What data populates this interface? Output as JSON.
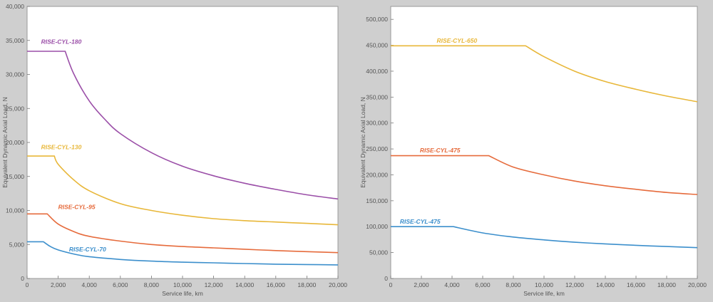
{
  "chart_data": [
    {
      "type": "line",
      "xlabel": "Service life, km",
      "ylabel": "Equivalent Dynamic Axial Load, N",
      "xlim": [
        0,
        20000
      ],
      "ylim": [
        0,
        40000
      ],
      "xticks": [
        0,
        2000,
        4000,
        6000,
        8000,
        10000,
        12000,
        14000,
        16000,
        18000,
        20000
      ],
      "xtick_labels": [
        "0",
        "2,000",
        "4,000",
        "6,000",
        "8,000",
        "10,000",
        "12,000",
        "14,000",
        "16,000",
        "18,000",
        "20,000"
      ],
      "yticks": [
        0,
        5000,
        10000,
        15000,
        20000,
        25000,
        30000,
        35000,
        40000
      ],
      "ytick_labels": [
        "0",
        "5,000",
        "10,000",
        "15,000",
        "20,000",
        "25,000",
        "30,000",
        "35,000",
        "40,000"
      ],
      "grid": false,
      "series": [
        {
          "name": "RISE-CYL-180",
          "color": "#9b4fa8",
          "plateau": 33400,
          "knee": 2450,
          "label_at": [
            900,
            34500
          ],
          "x": [
            0,
            2450,
            3000,
            4000,
            5000,
            6000,
            8000,
            10000,
            12000,
            14000,
            16000,
            18000,
            20000
          ],
          "y": [
            33400,
            33400,
            30100,
            26100,
            23400,
            21300,
            18500,
            16500,
            15100,
            14000,
            13100,
            12300,
            11700
          ]
        },
        {
          "name": "RISE-CYL-130",
          "color": "#e8b739",
          "plateau": 18000,
          "knee": 1750,
          "label_at": [
            900,
            19000
          ],
          "x": [
            0,
            1750,
            2000,
            3000,
            4000,
            6000,
            8000,
            10000,
            12000,
            14000,
            16000,
            18000,
            20000
          ],
          "y": [
            18000,
            18000,
            16800,
            14500,
            12900,
            11000,
            10000,
            9300,
            8800,
            8500,
            8300,
            8100,
            7900
          ]
        },
        {
          "name": "RISE-CYL-95",
          "color": "#e66b3c",
          "plateau": 9500,
          "knee": 1300,
          "label_at": [
            2000,
            10200
          ],
          "x": [
            0,
            1300,
            2000,
            3000,
            4000,
            6000,
            8000,
            10000,
            12000,
            14000,
            16000,
            18000,
            20000
          ],
          "y": [
            9500,
            9500,
            8000,
            6900,
            6200,
            5500,
            5000,
            4700,
            4500,
            4300,
            4100,
            3950,
            3800
          ]
        },
        {
          "name": "RISE-CYL-70",
          "color": "#3c8fcc",
          "plateau": 5400,
          "knee": 1050,
          "label_at": [
            2700,
            4000
          ],
          "x": [
            0,
            1050,
            1500,
            2000,
            3000,
            4000,
            6000,
            8000,
            10000,
            12000,
            14000,
            16000,
            18000,
            20000
          ],
          "y": [
            5400,
            5400,
            4700,
            4200,
            3600,
            3200,
            2800,
            2550,
            2400,
            2300,
            2200,
            2100,
            2050,
            2000
          ]
        }
      ]
    },
    {
      "type": "line",
      "xlabel": "Service life, km",
      "ylabel": "Equivalent Dynamic Axial Load, N",
      "xlim": [
        0,
        20000
      ],
      "ylim": [
        0,
        525000
      ],
      "xticks": [
        0,
        2000,
        4000,
        6000,
        8000,
        10000,
        12000,
        14000,
        16000,
        18000,
        20000
      ],
      "xtick_labels": [
        "0",
        "2,000",
        "4,000",
        "6,000",
        "8,000",
        "10,000",
        "12,000",
        "14,000",
        "16,000",
        "18,000",
        "20,000"
      ],
      "yticks": [
        0,
        50000,
        100000,
        150000,
        200000,
        250000,
        300000,
        350000,
        400000,
        450000,
        500000
      ],
      "ytick_labels": [
        "0",
        "50,000",
        "100,000",
        "150,000",
        "200,000",
        "250,000",
        "300,000",
        "350,000",
        "400,000",
        "450,000",
        "500,000"
      ],
      "grid": false,
      "series": [
        {
          "name": "RISE-CYL-650",
          "color": "#e8b739",
          "plateau": 449000,
          "knee": 8800,
          "label_at": [
            3000,
            455000
          ],
          "x": [
            0,
            8800,
            10000,
            12000,
            14000,
            16000,
            18000,
            20000
          ],
          "y": [
            449000,
            449000,
            428000,
            400000,
            380000,
            365000,
            352000,
            341000
          ]
        },
        {
          "name": "RISE-CYL-475",
          "color": "#e66b3c",
          "plateau": 237000,
          "knee": 6400,
          "label_at": [
            1900,
            243000
          ],
          "x": [
            0,
            6400,
            8000,
            10000,
            12000,
            14000,
            16000,
            18000,
            20000
          ],
          "y": [
            237000,
            237000,
            215000,
            200000,
            188000,
            179000,
            172000,
            166000,
            162000
          ]
        },
        {
          "name": "RISE-CYL-475",
          "color": "#3c8fcc",
          "plateau": 100000,
          "knee": 4100,
          "label_at": [
            600,
            106000
          ],
          "x": [
            0,
            4100,
            6000,
            8000,
            10000,
            12000,
            14000,
            16000,
            18000,
            20000
          ],
          "y": [
            100000,
            100000,
            88000,
            80000,
            74500,
            70000,
            66800,
            64000,
            61700,
            59500
          ]
        }
      ]
    }
  ]
}
